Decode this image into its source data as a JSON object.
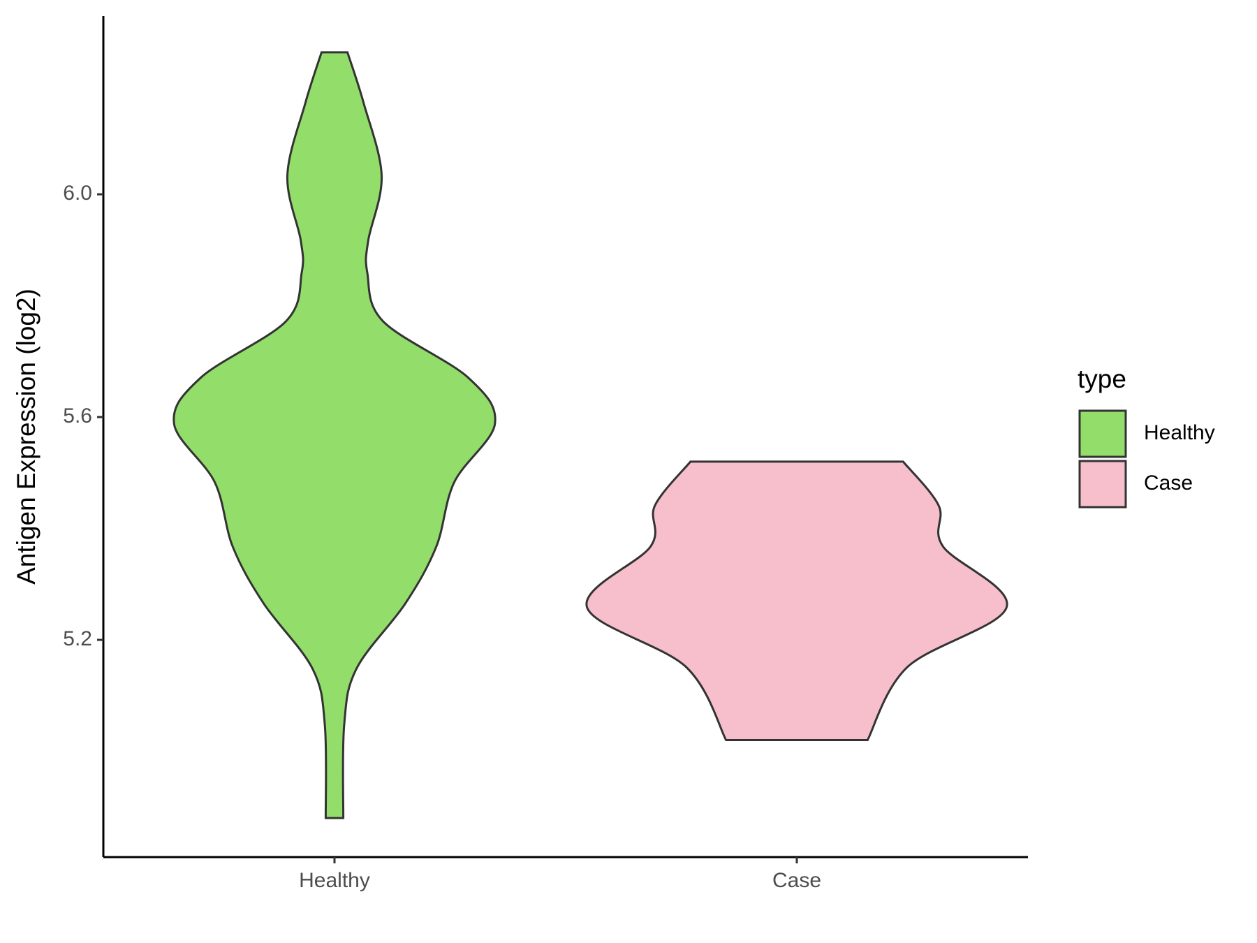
{
  "chart_data": {
    "type": "violin",
    "ylabel": "Antigen Expression (log2)",
    "categories": [
      "Healthy",
      "Case"
    ],
    "violins": [
      {
        "name": "Healthy",
        "color": "#93dd6a",
        "y": [
          6.255,
          6.164,
          6.033,
          5.917,
          5.859,
          5.772,
          5.671,
          5.588,
          5.483,
          5.367,
          5.265,
          5.149,
          5.048,
          4.88
        ],
        "width": [
          0.028,
          0.063,
          0.102,
          0.073,
          0.071,
          0.105,
          0.289,
          0.347,
          0.259,
          0.22,
          0.153,
          0.048,
          0.021,
          0.019
        ]
      },
      {
        "name": "Case",
        "color": "#f7bfcb",
        "y": [
          5.52,
          5.441,
          5.368,
          5.259,
          5.151,
          5.02
        ],
        "width": [
          0.23,
          0.307,
          0.316,
          0.454,
          0.239,
          0.153
        ]
      }
    ],
    "ylim": [
      4.81,
      6.32
    ],
    "yticks": [
      5.2,
      5.6,
      {
        "value": 6,
        "label": "6.0"
      }
    ],
    "legend_title": "type"
  }
}
